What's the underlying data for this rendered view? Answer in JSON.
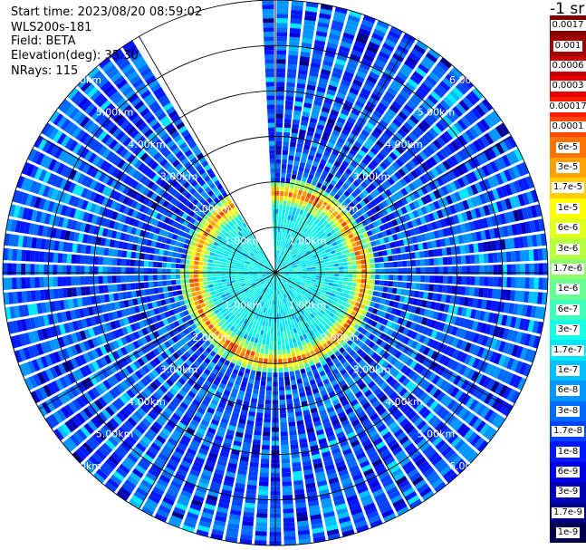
{
  "header": {
    "start_time": "Start time: 2023/08/20 08:59:02",
    "instrument": "WLS200s-181",
    "field": "Field: BETA",
    "elevation": "Elevation(deg): 35.30",
    "nrays": "NRays: 115"
  },
  "unit_label": "-1 sr",
  "chart_data": {
    "type": "heatmap",
    "subtype": "polar-ppi",
    "field": "BETA",
    "range_rings_km": [
      1,
      2,
      3,
      4,
      5,
      6
    ],
    "ring_labels": [
      "1.00km",
      "2.00km",
      "3.00km",
      "4.00km",
      "5.00km",
      "6.00km"
    ],
    "max_range_km": 6,
    "azimuth_spokes_deg": [
      0,
      30,
      60,
      90,
      120,
      150,
      180,
      210,
      240,
      270,
      300,
      330
    ],
    "n_rays": 115,
    "missing_sector_deg": [
      330,
      358
    ],
    "approx_values": {
      "inner_region_0_to_1.6km": "3e-7 to 1.7e-7",
      "ring_peak_near_1.85km": "1e-4 to 1e-5",
      "halo_near_2.1km": "6e-6 to 3e-6",
      "outer_region_2.3_to_6km": "1e-8 to 1.7e-9"
    },
    "colorbar": [
      {
        "label": "0.0017",
        "color": "#800000"
      },
      {
        "label": "0.001",
        "color": "#a30000"
      },
      {
        "label": "0.0006",
        "color": "#c60000"
      },
      {
        "label": "0.0003",
        "color": "#e80000"
      },
      {
        "label": "0.00017",
        "color": "#ff1c00"
      },
      {
        "label": "0.0001",
        "color": "#ff4800"
      },
      {
        "label": "6e-5",
        "color": "#ff7400"
      },
      {
        "label": "3e-5",
        "color": "#ffa100"
      },
      {
        "label": "1.7e-5",
        "color": "#ffcd00"
      },
      {
        "label": "1e-5",
        "color": "#ffff00"
      },
      {
        "label": "6e-6",
        "color": "#e0ff1e"
      },
      {
        "label": "3e-6",
        "color": "#b8ff3e"
      },
      {
        "label": "1.7e-6",
        "color": "#8cff6b"
      },
      {
        "label": "1e-6",
        "color": "#66ff91"
      },
      {
        "label": "6e-7",
        "color": "#3dffba"
      },
      {
        "label": "3e-7",
        "color": "#14ffe3"
      },
      {
        "label": "1.7e-7",
        "color": "#00e8ff"
      },
      {
        "label": "1e-7",
        "color": "#00c0ff"
      },
      {
        "label": "6e-8",
        "color": "#0096ff"
      },
      {
        "label": "3e-8",
        "color": "#006cff"
      },
      {
        "label": "1.7e-8",
        "color": "#0042ff"
      },
      {
        "label": "1e-8",
        "color": "#0018ff"
      },
      {
        "label": "6e-9",
        "color": "#0000e6"
      },
      {
        "label": "3e-9",
        "color": "#0000b4"
      },
      {
        "label": "1.7e-9",
        "color": "#000082"
      },
      {
        "label": "1e-9",
        "color": "#00004f"
      }
    ]
  }
}
